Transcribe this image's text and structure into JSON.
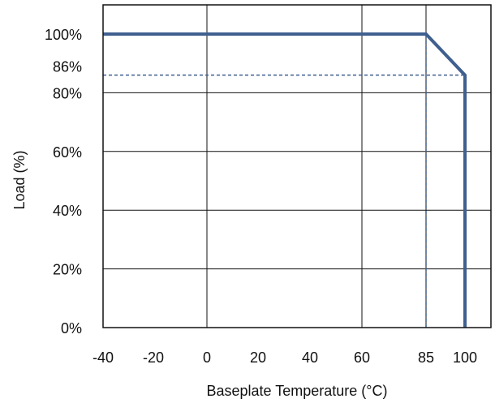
{
  "chart_data": {
    "type": "line",
    "title": "",
    "xlabel": "Baseplate Temperature (°C)",
    "ylabel": "Load (%)",
    "xlim": [
      -40,
      105
    ],
    "ylim": [
      0,
      110
    ],
    "x_ticks": [
      {
        "value": -40,
        "label": "-40"
      },
      {
        "value": -20,
        "label": "-20"
      },
      {
        "value": 0,
        "label": "0"
      },
      {
        "value": 20,
        "label": "20"
      },
      {
        "value": 40,
        "label": "40"
      },
      {
        "value": 60,
        "label": "60"
      },
      {
        "value": 85,
        "label": "85"
      },
      {
        "value": 100,
        "label": "100"
      }
    ],
    "y_ticks": [
      {
        "value": 0,
        "label": "0%"
      },
      {
        "value": 20,
        "label": "20%"
      },
      {
        "value": 40,
        "label": "40%"
      },
      {
        "value": 60,
        "label": "60%"
      },
      {
        "value": 80,
        "label": "80%"
      },
      {
        "value": 86,
        "label": "86%"
      },
      {
        "value": 100,
        "label": "100%"
      }
    ],
    "grid": true,
    "series": [
      {
        "x": [
          -40,
          85,
          100,
          100
        ],
        "y": [
          100,
          100,
          86,
          0
        ],
        "color": "#3f5f8f"
      }
    ],
    "reference_lines": [
      {
        "x": [
          -40,
          100
        ],
        "y": [
          86,
          86
        ],
        "style": "dashed",
        "color": "#3f5f8f"
      },
      {
        "x": [
          85,
          85
        ],
        "y": [
          0,
          100
        ],
        "style": "dashed",
        "color": "#3f5f8f"
      }
    ],
    "axis_color": "#111111",
    "grid_color": "#111111"
  }
}
